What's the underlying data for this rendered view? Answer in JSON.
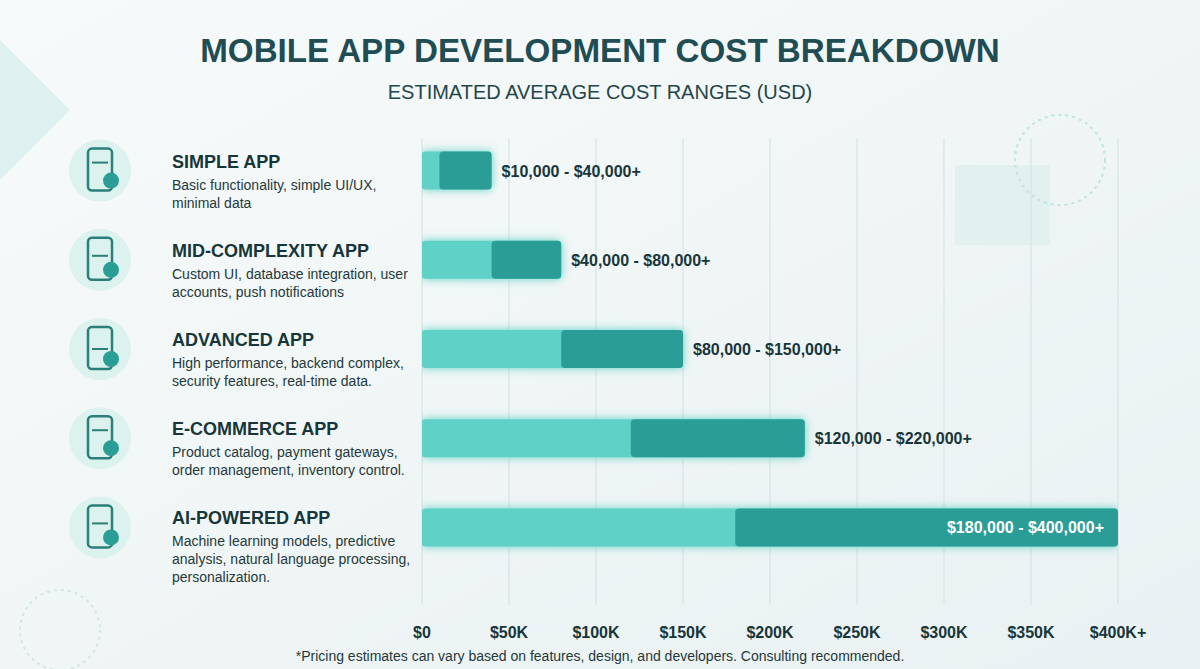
{
  "chart_data": {
    "type": "bar",
    "orientation": "horizontal",
    "title": "MOBILE APP DEVELOPMENT COST BREAKDOWN",
    "subtitle": "ESTIMATED AVERAGE COST RANGES (USD)",
    "categories": [
      "SIMPLE APP",
      "MID-COMPLEXITY APP",
      "ADVANCED APP",
      "E-COMMERCE APP",
      "AI-POWERED APP"
    ],
    "descriptions": [
      "Basic functionality, simple UI/UX, minimal data",
      "Custom UI, database integration, user accounts, push notifications",
      "High performance, backend complex, security features, real-time data.",
      "Product catalog, payment gateways, order management, inventory control.",
      "Machine learning models, predictive analysis, natural language processing, personalization."
    ],
    "values": [
      [
        10000,
        40000
      ],
      [
        40000,
        80000
      ],
      [
        80000,
        150000
      ],
      [
        120000,
        220000
      ],
      [
        180000,
        400000
      ]
    ],
    "value_labels": [
      "$10,000 - $40,000+",
      "$40,000 - $80,000+",
      "$80,000 - $150,000+",
      "$120,000 - $220,000+",
      "$180,000 - $400,000+"
    ],
    "color": "#2a9d96",
    "xlim": [
      0,
      400000
    ],
    "xticks": [
      {
        "value": 0,
        "label": "$0"
      },
      {
        "value": 50000,
        "label": "$50K"
      },
      {
        "value": 100000,
        "label": "$100K"
      },
      {
        "value": 150000,
        "label": "$150K"
      },
      {
        "value": 200000,
        "label": "$200K"
      },
      {
        "value": 250000,
        "label": "$250K"
      },
      {
        "value": 300000,
        "label": "$300K"
      },
      {
        "value": 350000,
        "label": "$350K"
      },
      {
        "value": 400000,
        "label": "$400K+"
      }
    ],
    "grid": true,
    "data_labels": true,
    "footnote": "*Pricing estimates can vary based on features, design, and developers. Consulting recommended."
  }
}
